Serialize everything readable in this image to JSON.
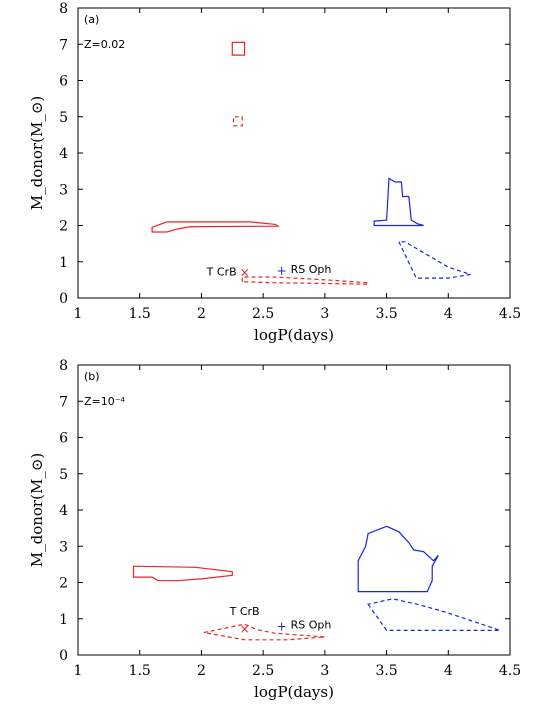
{
  "chart_data": [
    {
      "type": "area",
      "panel_label": "(a)",
      "metallicity_label": "Z=0.02",
      "xlabel": "logP(days)",
      "ylabel": "M_donor(M_⊙)",
      "xlim": [
        1,
        4.5
      ],
      "ylim": [
        0,
        8
      ],
      "xticks": [
        "1",
        "1.5",
        "2",
        "2.5",
        "3",
        "3.5",
        "4",
        "4.5"
      ],
      "yticks": [
        "0",
        "1",
        "2",
        "3",
        "4",
        "5",
        "6",
        "7",
        "8"
      ],
      "grid": false,
      "regions": [
        {
          "color": "#e8262a",
          "style": "solid",
          "points": [
            [
              2.25,
              6.7
            ],
            [
              2.35,
              6.7
            ],
            [
              2.35,
              7.05
            ],
            [
              2.25,
              7.05
            ]
          ]
        },
        {
          "color": "#e8262a",
          "style": "dashed",
          "points": [
            [
              2.26,
              4.75
            ],
            [
              2.33,
              4.75
            ],
            [
              2.33,
              5.0
            ],
            [
              2.26,
              5.0
            ]
          ]
        },
        {
          "color": "#e8262a",
          "style": "solid",
          "points": [
            [
              1.6,
              1.82
            ],
            [
              1.6,
              1.95
            ],
            [
              1.72,
              2.1
            ],
            [
              2.4,
              2.1
            ],
            [
              2.6,
              2.03
            ],
            [
              2.62,
              1.98
            ],
            [
              2.0,
              1.97
            ],
            [
              1.9,
              1.96
            ],
            [
              1.8,
              1.9
            ],
            [
              1.72,
              1.82
            ]
          ]
        },
        {
          "color": "#e8262a",
          "style": "dashed",
          "points": [
            [
              2.33,
              0.45
            ],
            [
              2.33,
              0.58
            ],
            [
              2.58,
              0.58
            ],
            [
              2.9,
              0.52
            ],
            [
              3.1,
              0.48
            ],
            [
              3.35,
              0.42
            ],
            [
              3.35,
              0.38
            ],
            [
              3.0,
              0.4
            ],
            [
              2.6,
              0.42
            ]
          ]
        },
        {
          "color": "#1a26d6",
          "style": "solid",
          "points": [
            [
              3.4,
              2.0
            ],
            [
              3.4,
              2.12
            ],
            [
              3.5,
              2.15
            ],
            [
              3.52,
              3.3
            ],
            [
              3.57,
              3.2
            ],
            [
              3.62,
              3.2
            ],
            [
              3.63,
              2.8
            ],
            [
              3.68,
              2.8
            ],
            [
              3.7,
              2.15
            ],
            [
              3.75,
              2.05
            ],
            [
              3.8,
              2.0
            ]
          ]
        },
        {
          "color": "#1a26d6",
          "style": "dashed",
          "points": [
            [
              3.6,
              1.55
            ],
            [
              3.74,
              0.55
            ],
            [
              4.0,
              0.55
            ],
            [
              4.18,
              0.65
            ],
            [
              4.0,
              0.85
            ],
            [
              3.65,
              1.55
            ]
          ]
        }
      ],
      "stars": [
        {
          "name": "T CrB",
          "symbol": "×",
          "x": 2.35,
          "y": 0.7,
          "color": "#e8262a"
        },
        {
          "name": "RS Oph",
          "symbol": "+",
          "x": 2.65,
          "y": 0.75,
          "color": "#1a26d6"
        }
      ]
    },
    {
      "type": "area",
      "panel_label": "(b)",
      "metallicity_label": "Z=10⁻⁴",
      "xlabel": "logP(days)",
      "ylabel": "M_donor(M_⊙)",
      "xlim": [
        1,
        4.5
      ],
      "ylim": [
        0,
        8
      ],
      "xticks": [
        "1",
        "1.5",
        "2",
        "2.5",
        "3",
        "3.5",
        "4",
        "4.5"
      ],
      "yticks": [
        "0",
        "1",
        "2",
        "3",
        "4",
        "5",
        "6",
        "7",
        "8"
      ],
      "grid": false,
      "regions": [
        {
          "color": "#e8262a",
          "style": "solid",
          "points": [
            [
              1.45,
              2.15
            ],
            [
              1.45,
              2.45
            ],
            [
              1.95,
              2.42
            ],
            [
              2.25,
              2.3
            ],
            [
              2.25,
              2.2
            ],
            [
              2.0,
              2.1
            ],
            [
              1.8,
              2.05
            ],
            [
              1.65,
              2.05
            ],
            [
              1.6,
              2.15
            ]
          ]
        },
        {
          "color": "#e8262a",
          "style": "dashed",
          "points": [
            [
              2.02,
              0.62
            ],
            [
              2.35,
              0.85
            ],
            [
              2.45,
              0.7
            ],
            [
              2.6,
              0.6
            ],
            [
              2.8,
              0.55
            ],
            [
              3.0,
              0.5
            ],
            [
              2.7,
              0.42
            ],
            [
              2.35,
              0.42
            ]
          ]
        },
        {
          "color": "#1a26d6",
          "style": "solid",
          "points": [
            [
              3.27,
              1.75
            ],
            [
              3.27,
              2.6
            ],
            [
              3.33,
              3.0
            ],
            [
              3.35,
              3.35
            ],
            [
              3.5,
              3.55
            ],
            [
              3.6,
              3.4
            ],
            [
              3.68,
              3.1
            ],
            [
              3.72,
              2.9
            ],
            [
              3.8,
              2.85
            ],
            [
              3.88,
              2.6
            ],
            [
              3.92,
              2.75
            ],
            [
              3.87,
              2.45
            ],
            [
              3.87,
              2.05
            ],
            [
              3.83,
              1.75
            ]
          ]
        },
        {
          "color": "#1a26d6",
          "style": "dashed",
          "points": [
            [
              3.35,
              1.4
            ],
            [
              3.5,
              0.68
            ],
            [
              4.0,
              0.68
            ],
            [
              4.42,
              0.68
            ],
            [
              3.98,
              1.18
            ],
            [
              3.75,
              1.4
            ],
            [
              3.55,
              1.55
            ]
          ]
        }
      ],
      "stars": [
        {
          "name": "T CrB",
          "symbol": "×",
          "x": 2.35,
          "y": 0.72,
          "color": "#e8262a"
        },
        {
          "name": "RS Oph",
          "symbol": "+",
          "x": 2.65,
          "y": 0.78,
          "color": "#1a26d6"
        }
      ]
    }
  ]
}
